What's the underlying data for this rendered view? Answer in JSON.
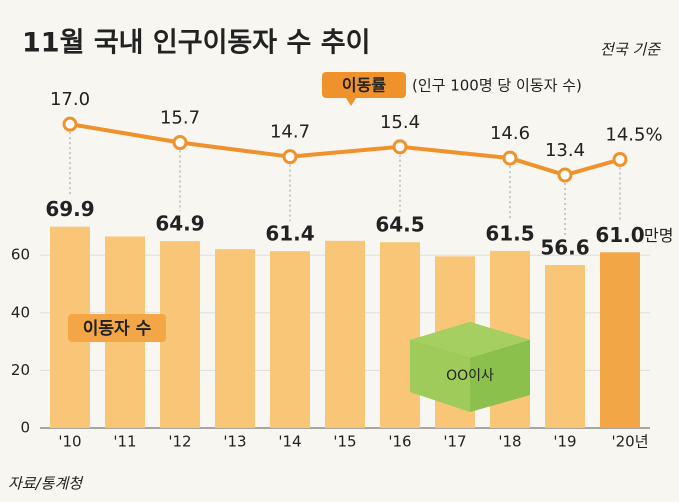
{
  "chart_data": {
    "type": "bar",
    "title": "11월 국내 인구이동자 수 추이",
    "subtitle": "전국 기준",
    "categories": [
      "'10",
      "'11",
      "'12",
      "'13",
      "'14",
      "'15",
      "'16",
      "'17",
      "'18",
      "'19",
      "'20년"
    ],
    "ylim": [
      0,
      100
    ],
    "yticks": [
      0,
      20,
      40,
      60
    ],
    "y2lim": [
      11,
      18
    ],
    "unit": "만명",
    "source": "자료/통계청",
    "box_label": "OO이사",
    "line_note": "(인구 100명 당 이동자 수)",
    "series": [
      {
        "name": "이동자 수",
        "type": "bar",
        "color": "#f9c577",
        "highlight_color": "#f3a645",
        "values": [
          69.9,
          66.5,
          64.9,
          62.1,
          61.4,
          65.0,
          64.5,
          59.6,
          61.5,
          56.6,
          61.0
        ],
        "value_labels": [
          "69.9",
          null,
          "64.9",
          null,
          "61.4",
          null,
          "64.5",
          null,
          "61.5",
          "56.6",
          "61.0"
        ]
      },
      {
        "name": "이동률",
        "type": "line",
        "axis": "y2",
        "color": "#f0922b",
        "values": [
          17.0,
          null,
          15.7,
          null,
          14.7,
          null,
          15.4,
          null,
          14.6,
          13.4,
          14.5
        ],
        "value_labels": [
          "17.0",
          null,
          "15.7",
          null,
          "14.7",
          null,
          "15.4",
          null,
          "14.6",
          "13.4",
          "14.5%"
        ]
      }
    ]
  }
}
